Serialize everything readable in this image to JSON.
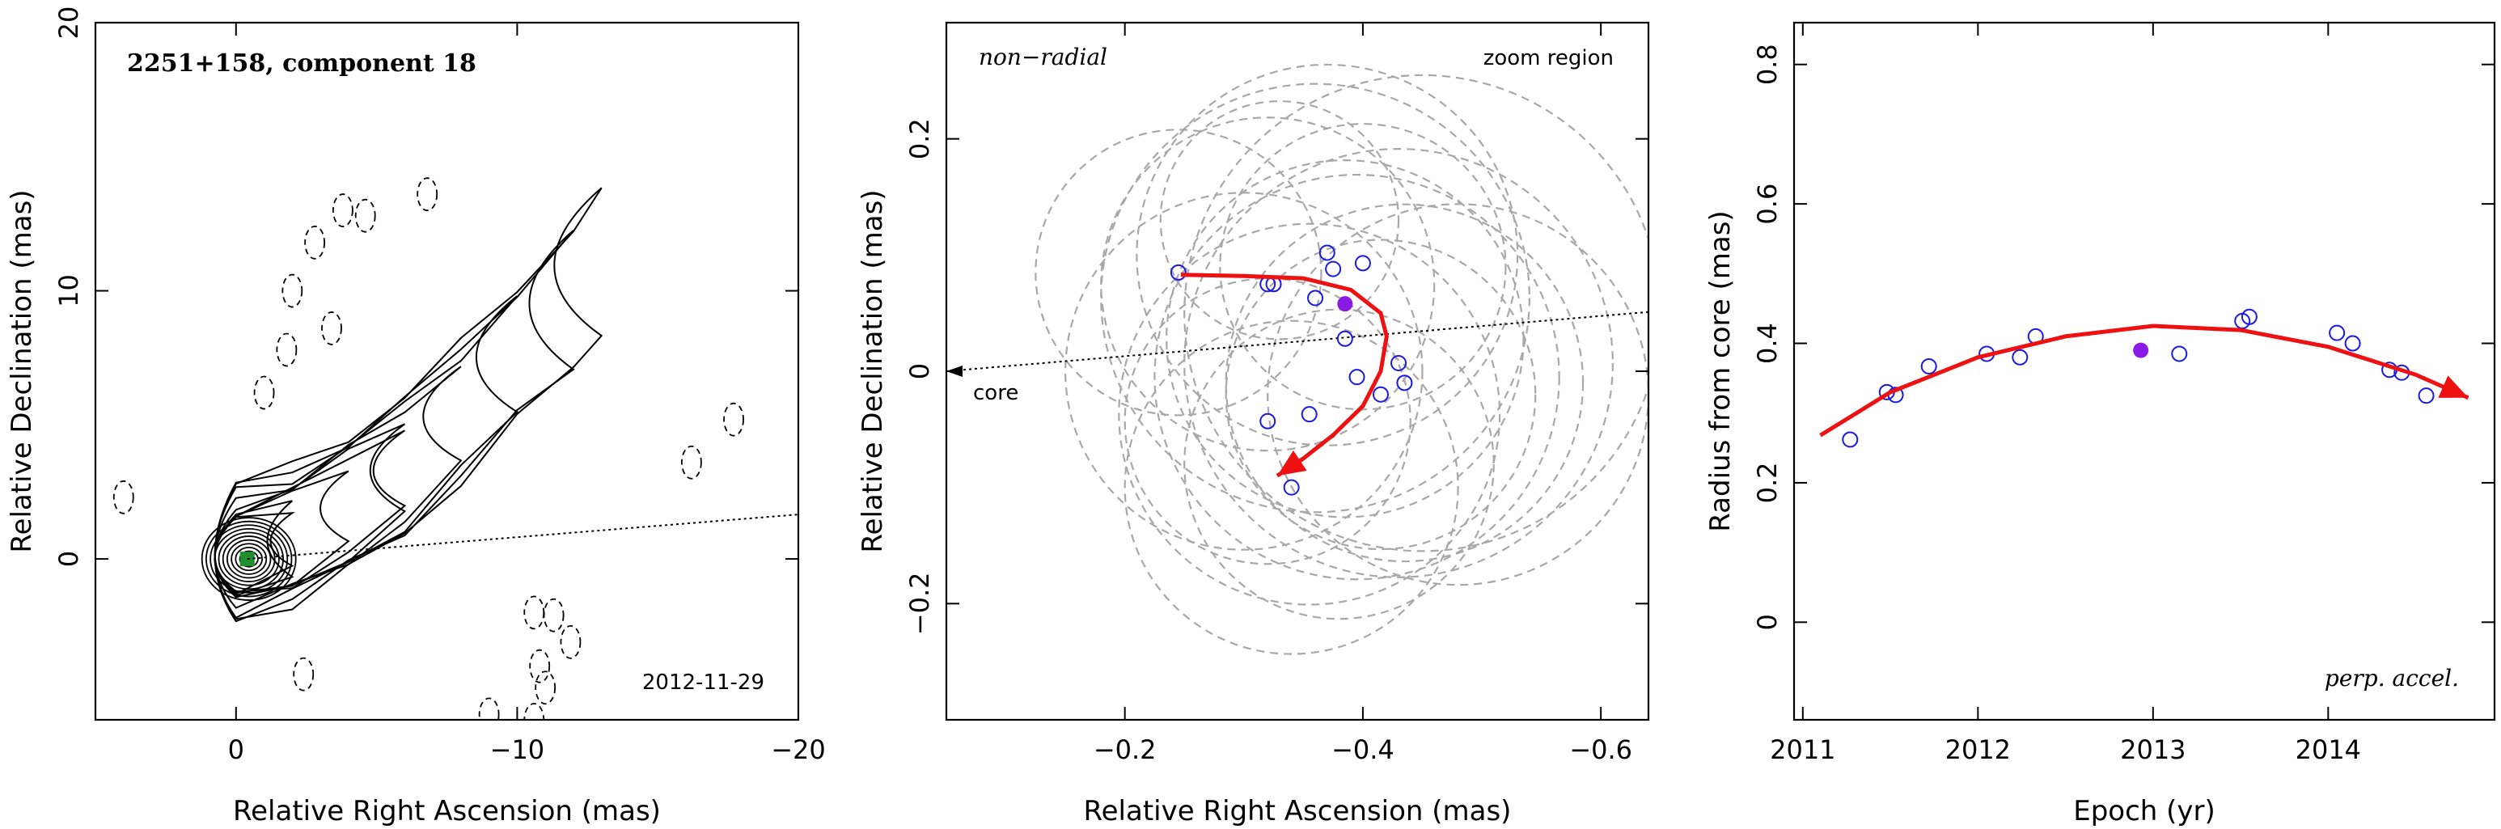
{
  "chart_data": [
    {
      "type": "contour",
      "title": "2251+158, component 18",
      "date": "2012-11-29",
      "xlabel": "Relative Right Ascension (mas)",
      "ylabel": "Relative Declination (mas)",
      "xlim": [
        5,
        -20
      ],
      "ylim": [
        -6,
        20
      ],
      "xticks": [
        0,
        -10,
        -20
      ],
      "yticks": [
        0,
        10,
        20
      ],
      "core": {
        "x": -0.4,
        "y": 0
      },
      "direction_line": {
        "from": [
          -0.4,
          0
        ],
        "to": [
          -20.5,
          1.7
        ]
      },
      "jet_ridge": [
        [
          0,
          0
        ],
        [
          -2,
          0.6
        ],
        [
          -4,
          1.8
        ],
        [
          -6,
          3.2
        ],
        [
          -8,
          5.2
        ],
        [
          -10,
          7.4
        ],
        [
          -12,
          9.4
        ],
        [
          -13,
          10.8
        ]
      ],
      "negative_contours": [
        [
          -3.8,
          13
        ],
        [
          -4.6,
          12.8
        ],
        [
          -2.8,
          11.8
        ],
        [
          -6.8,
          13.6
        ],
        [
          -2,
          10
        ],
        [
          -3.4,
          8.6
        ],
        [
          -1.8,
          7.8
        ],
        [
          -1,
          6.2
        ],
        [
          -16.2,
          3.6
        ],
        [
          -17.7,
          5.2
        ],
        [
          4,
          2.3
        ],
        [
          -10.6,
          -2
        ],
        [
          -11.3,
          -2.1
        ],
        [
          -11.9,
          -3.1
        ],
        [
          -10.8,
          -4
        ],
        [
          -11,
          -4.8
        ],
        [
          -10.6,
          -6
        ],
        [
          -9,
          -5.8
        ],
        [
          -2.4,
          -4.3
        ]
      ]
    },
    {
      "type": "scatter",
      "annotation": "non−radial",
      "region_label": "zoom region",
      "core_label": "core",
      "xlabel": "Relative Right Ascension (mas)",
      "ylabel": "Relative Declination (mas)",
      "xlim": [
        -0.05,
        -0.64
      ],
      "ylim": [
        -0.3,
        0.3
      ],
      "xticks": [
        -0.2,
        -0.4,
        -0.6
      ],
      "yticks": [
        -0.2,
        0,
        0.2
      ],
      "points": [
        [
          -0.245,
          0.085
        ],
        [
          -0.32,
          0.075
        ],
        [
          -0.325,
          0.075
        ],
        [
          -0.37,
          0.102
        ],
        [
          -0.375,
          0.088
        ],
        [
          -0.4,
          0.093
        ],
        [
          -0.36,
          0.063
        ],
        [
          -0.385,
          0.028
        ],
        [
          -0.395,
          -0.005
        ],
        [
          -0.415,
          -0.02
        ],
        [
          -0.43,
          0.007
        ],
        [
          -0.435,
          -0.01
        ],
        [
          -0.32,
          -0.043
        ],
        [
          -0.355,
          -0.037
        ],
        [
          -0.34,
          -0.1
        ]
      ],
      "highlight_point": [
        -0.385,
        0.058
      ],
      "uncertainty_circles": [
        [
          -0.245,
          0.085,
          0.12
        ],
        [
          -0.32,
          0.075,
          0.14
        ],
        [
          -0.37,
          0.1,
          0.16
        ],
        [
          -0.4,
          0.09,
          0.12
        ],
        [
          -0.36,
          0.063,
          0.18
        ],
        [
          -0.385,
          0.028,
          0.15
        ],
        [
          -0.395,
          -0.005,
          0.17
        ],
        [
          -0.415,
          -0.02,
          0.13
        ],
        [
          -0.43,
          0.007,
          0.18
        ],
        [
          -0.435,
          -0.01,
          0.15
        ],
        [
          -0.32,
          -0.043,
          0.12
        ],
        [
          -0.355,
          -0.037,
          0.16
        ],
        [
          -0.34,
          -0.1,
          0.14
        ],
        [
          -0.45,
          0.05,
          0.2
        ],
        [
          -0.3,
          0.0,
          0.15
        ],
        [
          -0.48,
          -0.02,
          0.16
        ],
        [
          -0.38,
          -0.08,
          0.13
        ],
        [
          -0.33,
          0.13,
          0.1
        ]
      ],
      "fit_curve": [
        [
          -0.247,
          0.083
        ],
        [
          -0.3,
          0.082
        ],
        [
          -0.35,
          0.08
        ],
        [
          -0.39,
          0.07
        ],
        [
          -0.415,
          0.05
        ],
        [
          -0.42,
          0.03
        ],
        [
          -0.415,
          0.0
        ],
        [
          -0.4,
          -0.03
        ],
        [
          -0.375,
          -0.055
        ],
        [
          -0.35,
          -0.075
        ],
        [
          -0.328,
          -0.09
        ]
      ],
      "direction_line": {
        "from": [
          -0.64,
          0.051
        ],
        "to": [
          -0.05,
          0.0
        ]
      }
    },
    {
      "type": "scatter",
      "annotation": "perp. accel.",
      "xlabel": "Epoch (yr)",
      "ylabel": "Radius from core (mas)",
      "xlim": [
        2010.95,
        2014.95
      ],
      "ylim": [
        -0.14,
        0.86
      ],
      "xticks": [
        2011,
        2012,
        2013,
        2014
      ],
      "yticks": [
        0,
        0.2,
        0.4,
        0.6,
        0.8
      ],
      "points": [
        [
          2011.27,
          0.262
        ],
        [
          2011.48,
          0.33
        ],
        [
          2011.53,
          0.326
        ],
        [
          2011.72,
          0.367
        ],
        [
          2012.05,
          0.385
        ],
        [
          2012.24,
          0.38
        ],
        [
          2012.33,
          0.41
        ],
        [
          2013.15,
          0.385
        ],
        [
          2013.51,
          0.432
        ],
        [
          2013.55,
          0.438
        ],
        [
          2014.05,
          0.415
        ],
        [
          2014.14,
          0.4
        ],
        [
          2014.35,
          0.362
        ],
        [
          2014.42,
          0.358
        ],
        [
          2014.56,
          0.325
        ]
      ],
      "highlight_point": [
        2012.93,
        0.39
      ],
      "fit_curve": [
        [
          2011.1,
          0.268
        ],
        [
          2011.5,
          0.33
        ],
        [
          2012.0,
          0.38
        ],
        [
          2012.5,
          0.41
        ],
        [
          2013.0,
          0.425
        ],
        [
          2013.5,
          0.419
        ],
        [
          2014.0,
          0.395
        ],
        [
          2014.5,
          0.355
        ],
        [
          2014.8,
          0.322
        ]
      ]
    }
  ]
}
